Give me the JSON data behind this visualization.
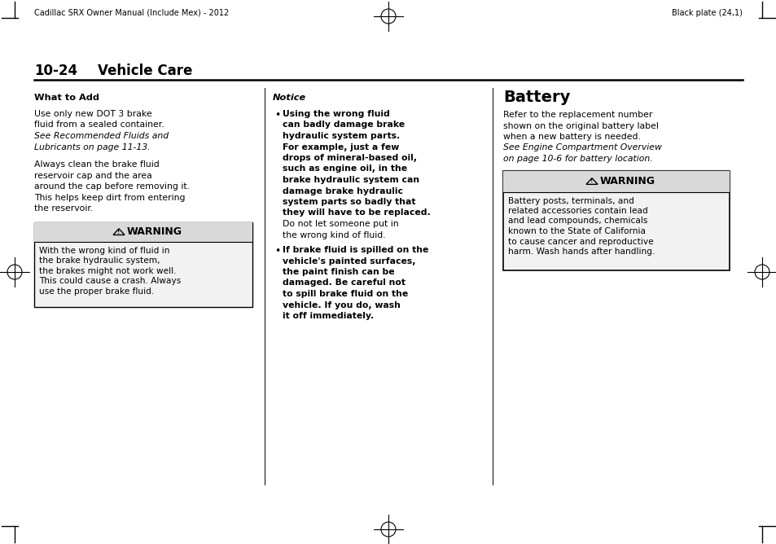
{
  "page_width": 9.54,
  "page_height": 6.68,
  "bg_color": "#ffffff",
  "header_left": "Cadillac SRX Owner Manual (Include Mex) - 2012",
  "header_right": "Black plate (24,1)",
  "section_title_num": "10-24",
  "section_title_text": "Vehicle Care",
  "col1_heading": "What to Add",
  "col1_body": [
    "Use only new DOT 3 brake",
    "fluid from a sealed container.",
    "See Recommended Fluids and",
    "Lubricants on page 11-13.",
    "",
    "Always clean the brake fluid",
    "reservoir cap and the area",
    "around the cap before removing it.",
    "This helps keep dirt from entering",
    "the reservoir."
  ],
  "col1_italic_lines": [
    2,
    3
  ],
  "warning1_title": "WARNING",
  "warning1_body": [
    "With the wrong kind of fluid in",
    "the brake hydraulic system,",
    "the brakes might not work well.",
    "This could cause a crash. Always",
    "use the proper brake fluid."
  ],
  "col2_heading": "Notice",
  "col2_bullet1_bold": [
    "Using the wrong fluid",
    "can badly damage brake",
    "hydraulic system parts.",
    "For example, just a few",
    "drops of mineral-based oil,",
    "such as engine oil, in the",
    "brake hydraulic system can",
    "damage brake hydraulic",
    "system parts so badly that",
    "they will have to be replaced."
  ],
  "col2_bullet1_normal": [
    "Do not let someone put in",
    "the wrong kind of fluid."
  ],
  "col2_bullet2_bold": [
    "If brake fluid is spilled on the",
    "vehicle's painted surfaces,",
    "the paint finish can be",
    "damaged. Be careful not",
    "to spill brake fluid on the",
    "vehicle. If you do, wash",
    "it off immediately."
  ],
  "col3_heading": "Battery",
  "col3_body_normal": [
    "Refer to the replacement number",
    "shown on the original battery label",
    "when a new battery is needed."
  ],
  "col3_body_italic": [
    "See Engine Compartment Overview",
    "on page 10-6 for battery location."
  ],
  "warning2_title": "WARNING",
  "warning2_body": [
    "Battery posts, terminals, and",
    "related accessories contain lead",
    "and lead compounds, chemicals",
    "known to the State of California",
    "to cause cancer and reproductive",
    "harm. Wash hands after handling."
  ],
  "warn_bg": "#d9d9d9",
  "warn_body_bg": "#f2f2f2",
  "col_div_color": "#000000",
  "rule_color": "#000000"
}
